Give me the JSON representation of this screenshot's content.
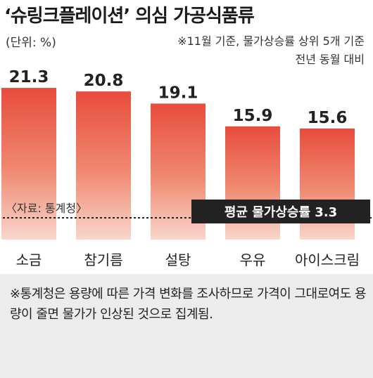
{
  "header": {
    "title": "‘슈링크플레이션’ 의심 가공식품류",
    "unit": "(단위: %)",
    "note_line1": "※11월 기준, 물가상승률 상위 5개 기준",
    "note_line2": "전년 동월 대비"
  },
  "chart_data": {
    "type": "bar",
    "categories": [
      "소금",
      "참기름",
      "설탕",
      "우유",
      "아이스크림"
    ],
    "values": [
      21.3,
      20.8,
      19.1,
      15.9,
      15.6
    ],
    "value_labels": [
      "21.3",
      "20.8",
      "19.1",
      "15.9",
      "15.6"
    ],
    "ylim": [
      0,
      22
    ],
    "average": {
      "value": 3.3,
      "label": "평균 물가상승률 3.3"
    },
    "source": "〈자료: 통계청〉",
    "colors": {
      "bar_top": "#e84c3d",
      "bar_bottom": "#f9d6cc",
      "label_box": "#222222"
    },
    "grid": false
  },
  "footnote": "※통계청은 용량에 따른 가격 변화를 조사하므로 가격이 그대로여도 용량이 줄면 물가가 인상된 것으로 집계됨."
}
